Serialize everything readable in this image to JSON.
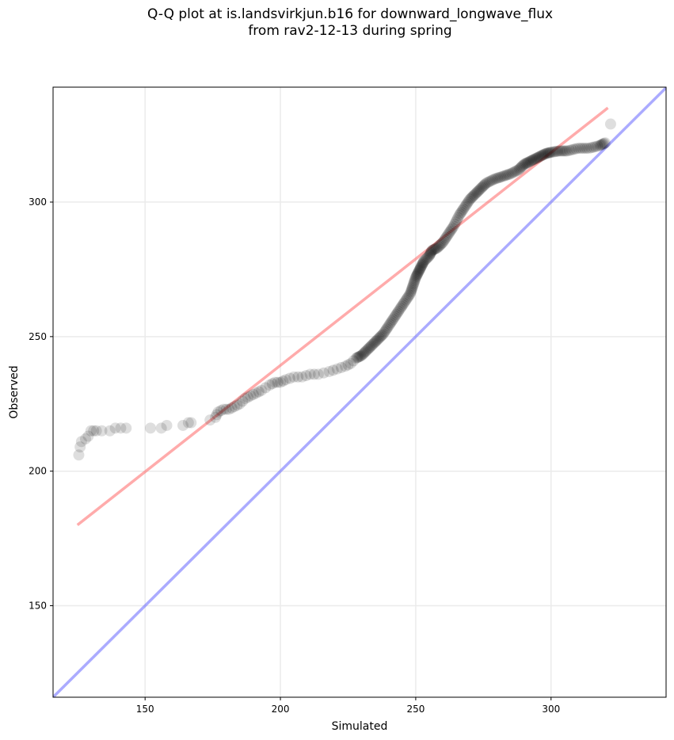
{
  "chart_data": {
    "type": "scatter",
    "title_line1": "Q-Q plot at is.landsvirkjun.b16 for downward_longwave_flux",
    "title_line2": "from rav2-12-13 during spring",
    "xlabel": "Simulated",
    "ylabel": "Observed",
    "xlim": [
      116,
      342.5
    ],
    "ylim": [
      116,
      342.7
    ],
    "xticks": [
      150,
      200,
      250,
      300
    ],
    "yticks": [
      150,
      200,
      250,
      300
    ],
    "xtick_labels": [
      "150",
      "200",
      "250",
      "300"
    ],
    "ytick_labels": [
      "150",
      "200",
      "250",
      "300"
    ],
    "grid": true,
    "colors": {
      "points": "#000000",
      "fit_line": "#ff6666",
      "identity_line": "#6666ff"
    },
    "fit_line": [
      [
        125,
        180
      ],
      [
        321,
        335
      ]
    ],
    "identity_line": [
      [
        116,
        116
      ],
      [
        342.5,
        342.5
      ]
    ],
    "points": [
      [
        125.5,
        206
      ],
      [
        126,
        209
      ],
      [
        126.5,
        211
      ],
      [
        128,
        212
      ],
      [
        129,
        213
      ],
      [
        130,
        215
      ],
      [
        131,
        215
      ],
      [
        132,
        215
      ],
      [
        134,
        215
      ],
      [
        137,
        215
      ],
      [
        139,
        216
      ],
      [
        141,
        216
      ],
      [
        143,
        216
      ],
      [
        152,
        216
      ],
      [
        156,
        216
      ],
      [
        158,
        217
      ],
      [
        164,
        217
      ],
      [
        166,
        218
      ],
      [
        167,
        218
      ],
      [
        174,
        219
      ],
      [
        176,
        220
      ],
      [
        177,
        222
      ],
      [
        179,
        223
      ],
      [
        181,
        223
      ],
      [
        183,
        224
      ],
      [
        185,
        225
      ],
      [
        187,
        227
      ],
      [
        189,
        228
      ],
      [
        191,
        229
      ],
      [
        193,
        230
      ],
      [
        196,
        232
      ],
      [
        198,
        233
      ],
      [
        200,
        233
      ],
      [
        202,
        234
      ],
      [
        205,
        235
      ],
      [
        208,
        235
      ],
      [
        211,
        236
      ],
      [
        214,
        236
      ],
      [
        218,
        237
      ],
      [
        221,
        238
      ],
      [
        224,
        239
      ],
      [
        226,
        240
      ],
      [
        228,
        242
      ],
      [
        230,
        243
      ],
      [
        232,
        245
      ],
      [
        234,
        247
      ],
      [
        236,
        249
      ],
      [
        238,
        251
      ],
      [
        240,
        254
      ],
      [
        242,
        257
      ],
      [
        244,
        260
      ],
      [
        246,
        263
      ],
      [
        248,
        266
      ],
      [
        249,
        269
      ],
      [
        250,
        272
      ],
      [
        251,
        274
      ],
      [
        252,
        276
      ],
      [
        253,
        278
      ],
      [
        255,
        280
      ],
      [
        256,
        282
      ],
      [
        258,
        283
      ],
      [
        260,
        285
      ],
      [
        262,
        288
      ],
      [
        264,
        291
      ],
      [
        266,
        295
      ],
      [
        268,
        298
      ],
      [
        270,
        301
      ],
      [
        272,
        303
      ],
      [
        274,
        305
      ],
      [
        276,
        307
      ],
      [
        279,
        308.5
      ],
      [
        282,
        309.5
      ],
      [
        285,
        310.5
      ],
      [
        288,
        312
      ],
      [
        290,
        314
      ],
      [
        292,
        315
      ],
      [
        294,
        316
      ],
      [
        296,
        317
      ],
      [
        298,
        318
      ],
      [
        300,
        318.5
      ],
      [
        303,
        319
      ],
      [
        306,
        319
      ],
      [
        310,
        320
      ],
      [
        314,
        320
      ],
      [
        318,
        321
      ],
      [
        320,
        322
      ],
      [
        322,
        329
      ]
    ]
  }
}
